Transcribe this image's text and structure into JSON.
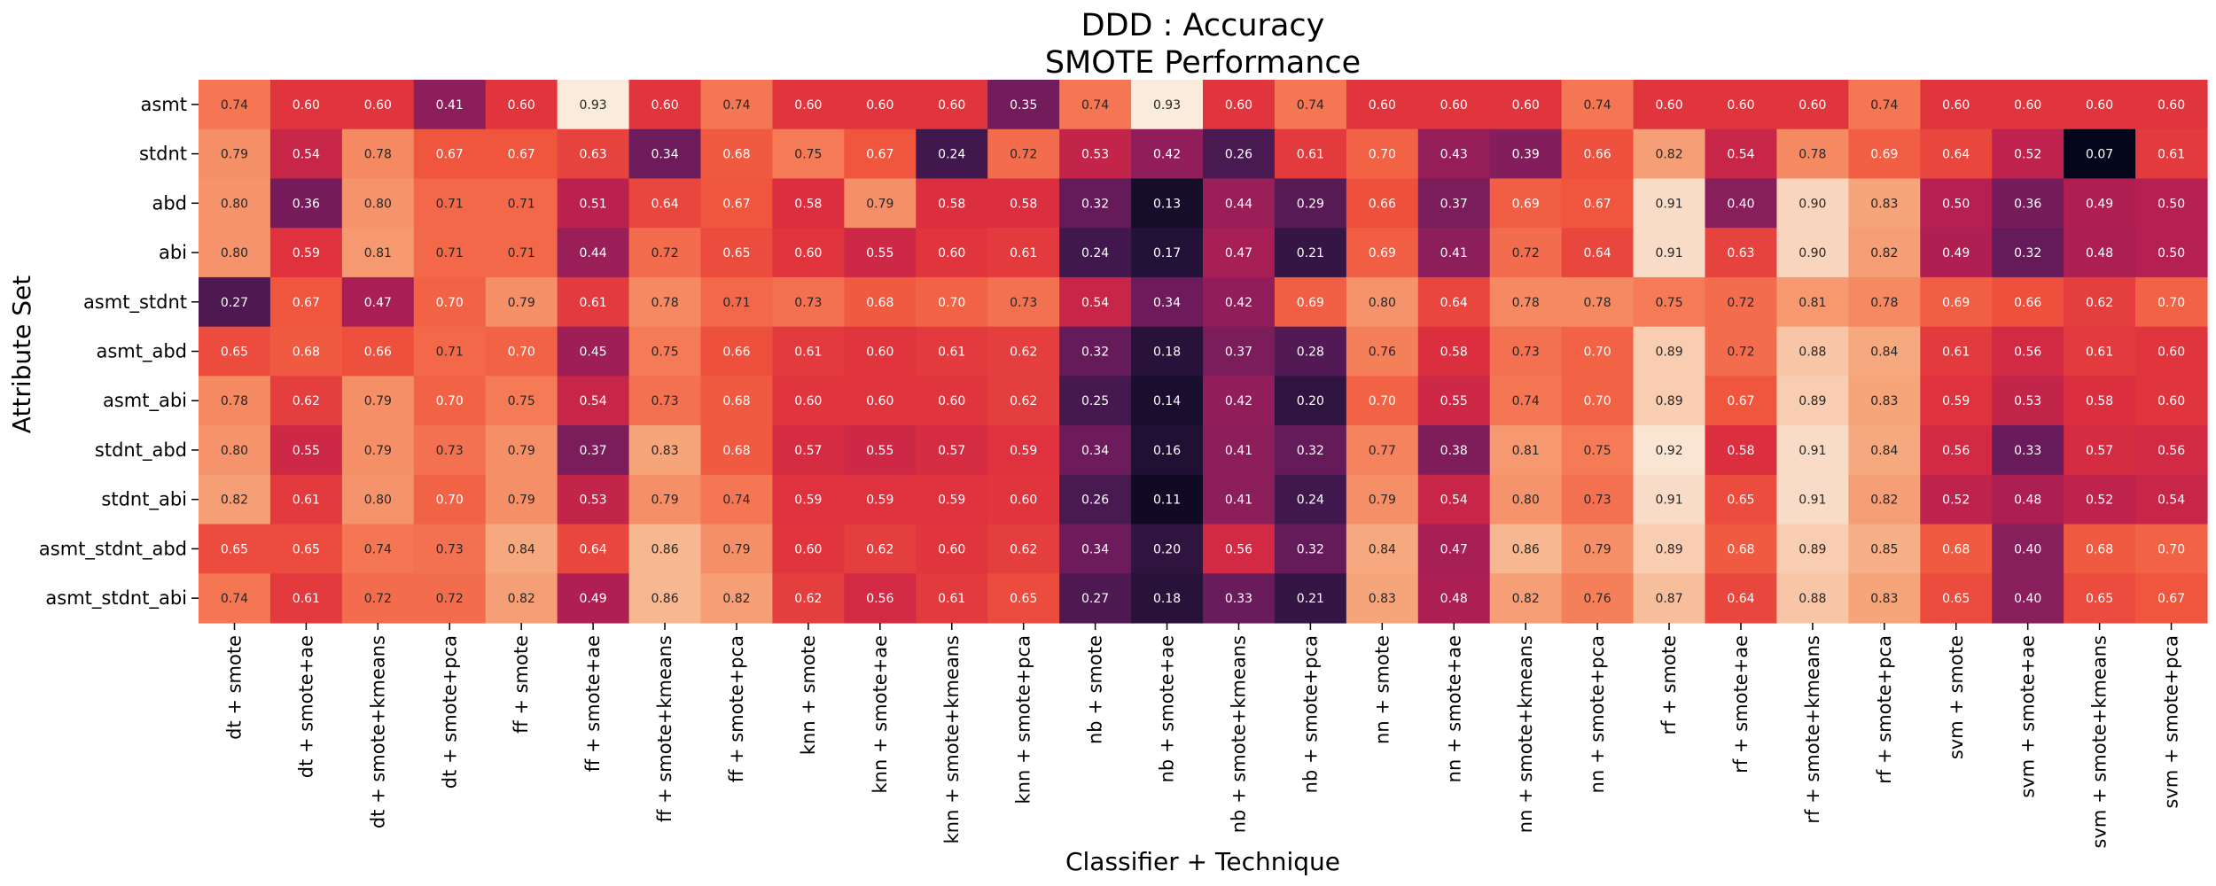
{
  "chart_data": {
    "type": "heatmap",
    "title": "DDD : Accuracy",
    "subtitle": "SMOTE Performance",
    "xlabel": "Classifier + Technique",
    "ylabel": "Attribute Set",
    "colormap": "rocket",
    "value_range": [
      0.07,
      0.93
    ],
    "columns": [
      "dt + smote",
      "dt + smote+ae",
      "dt + smote+kmeans",
      "dt + smote+pca",
      "ff + smote",
      "ff + smote+ae",
      "ff + smote+kmeans",
      "ff + smote+pca",
      "knn + smote",
      "knn + smote+ae",
      "knn + smote+kmeans",
      "knn + smote+pca",
      "nb + smote",
      "nb + smote+ae",
      "nb + smote+kmeans",
      "nb + smote+pca",
      "nn + smote",
      "nn + smote+ae",
      "nn + smote+kmeans",
      "nn + smote+pca",
      "rf + smote",
      "rf + smote+ae",
      "rf + smote+kmeans",
      "rf + smote+pca",
      "svm + smote",
      "svm + smote+ae",
      "svm + smote+kmeans",
      "svm + smote+pca"
    ],
    "rows": [
      "asmt",
      "stdnt",
      "abd",
      "abi",
      "asmt_stdnt",
      "asmt_abd",
      "asmt_abi",
      "stdnt_abd",
      "stdnt_abi",
      "asmt_stdnt_abd",
      "asmt_stdnt_abi"
    ],
    "values": [
      [
        "0.74",
        "0.60",
        "0.60",
        "0.41",
        "0.60",
        "0.93",
        "0.60",
        "0.74",
        "0.60",
        "0.60",
        "0.60",
        "0.35",
        "0.74",
        "0.93",
        "0.60",
        "0.74",
        "0.60",
        "0.60",
        "0.60",
        "0.74",
        "0.60",
        "0.60",
        "0.60",
        "0.74",
        "0.60",
        "0.60",
        "0.60",
        "0.60"
      ],
      [
        "0.79",
        "0.54",
        "0.78",
        "0.67",
        "0.67",
        "0.63",
        "0.34",
        "0.68",
        "0.75",
        "0.67",
        "0.24",
        "0.72",
        "0.53",
        "0.42",
        "0.26",
        "0.61",
        "0.70",
        "0.43",
        "0.39",
        "0.66",
        "0.82",
        "0.54",
        "0.78",
        "0.69",
        "0.64",
        "0.52",
        "0.07",
        "0.61"
      ],
      [
        "0.80",
        "0.36",
        "0.80",
        "0.71",
        "0.71",
        "0.51",
        "0.64",
        "0.67",
        "0.58",
        "0.79",
        "0.58",
        "0.58",
        "0.32",
        "0.13",
        "0.44",
        "0.29",
        "0.66",
        "0.37",
        "0.69",
        "0.67",
        "0.91",
        "0.40",
        "0.90",
        "0.83",
        "0.50",
        "0.36",
        "0.49",
        "0.50"
      ],
      [
        "0.80",
        "0.59",
        "0.81",
        "0.71",
        "0.71",
        "0.44",
        "0.72",
        "0.65",
        "0.60",
        "0.55",
        "0.60",
        "0.61",
        "0.24",
        "0.17",
        "0.47",
        "0.21",
        "0.69",
        "0.41",
        "0.72",
        "0.64",
        "0.91",
        "0.63",
        "0.90",
        "0.82",
        "0.49",
        "0.32",
        "0.48",
        "0.50"
      ],
      [
        "0.27",
        "0.67",
        "0.47",
        "0.70",
        "0.79",
        "0.61",
        "0.78",
        "0.71",
        "0.73",
        "0.68",
        "0.70",
        "0.73",
        "0.54",
        "0.34",
        "0.42",
        "0.69",
        "0.80",
        "0.64",
        "0.78",
        "0.78",
        "0.75",
        "0.72",
        "0.81",
        "0.78",
        "0.69",
        "0.66",
        "0.62",
        "0.70"
      ],
      [
        "0.65",
        "0.68",
        "0.66",
        "0.71",
        "0.70",
        "0.45",
        "0.75",
        "0.66",
        "0.61",
        "0.60",
        "0.61",
        "0.62",
        "0.32",
        "0.18",
        "0.37",
        "0.28",
        "0.76",
        "0.58",
        "0.73",
        "0.70",
        "0.89",
        "0.72",
        "0.88",
        "0.84",
        "0.61",
        "0.56",
        "0.61",
        "0.60"
      ],
      [
        "0.78",
        "0.62",
        "0.79",
        "0.70",
        "0.75",
        "0.54",
        "0.73",
        "0.68",
        "0.60",
        "0.60",
        "0.60",
        "0.62",
        "0.25",
        "0.14",
        "0.42",
        "0.20",
        "0.70",
        "0.55",
        "0.74",
        "0.70",
        "0.89",
        "0.67",
        "0.89",
        "0.83",
        "0.59",
        "0.53",
        "0.58",
        "0.60"
      ],
      [
        "0.80",
        "0.55",
        "0.79",
        "0.73",
        "0.79",
        "0.37",
        "0.83",
        "0.68",
        "0.57",
        "0.55",
        "0.57",
        "0.59",
        "0.34",
        "0.16",
        "0.41",
        "0.32",
        "0.77",
        "0.38",
        "0.81",
        "0.75",
        "0.92",
        "0.58",
        "0.91",
        "0.84",
        "0.56",
        "0.33",
        "0.57",
        "0.56"
      ],
      [
        "0.82",
        "0.61",
        "0.80",
        "0.70",
        "0.79",
        "0.53",
        "0.79",
        "0.74",
        "0.59",
        "0.59",
        "0.59",
        "0.60",
        "0.26",
        "0.11",
        "0.41",
        "0.24",
        "0.79",
        "0.54",
        "0.80",
        "0.73",
        "0.91",
        "0.65",
        "0.91",
        "0.82",
        "0.52",
        "0.48",
        "0.52",
        "0.54"
      ],
      [
        "0.65",
        "0.65",
        "0.74",
        "0.73",
        "0.84",
        "0.64",
        "0.86",
        "0.79",
        "0.60",
        "0.62",
        "0.60",
        "0.62",
        "0.34",
        "0.20",
        "0.56",
        "0.32",
        "0.84",
        "0.47",
        "0.86",
        "0.79",
        "0.89",
        "0.68",
        "0.89",
        "0.85",
        "0.68",
        "0.40",
        "0.68",
        "0.70"
      ],
      [
        "0.74",
        "0.61",
        "0.72",
        "0.72",
        "0.82",
        "0.49",
        "0.86",
        "0.82",
        "0.62",
        "0.56",
        "0.61",
        "0.65",
        "0.27",
        "0.18",
        "0.33",
        "0.21",
        "0.83",
        "0.48",
        "0.82",
        "0.76",
        "0.87",
        "0.64",
        "0.88",
        "0.83",
        "0.65",
        "0.40",
        "0.65",
        "0.67"
      ]
    ]
  }
}
